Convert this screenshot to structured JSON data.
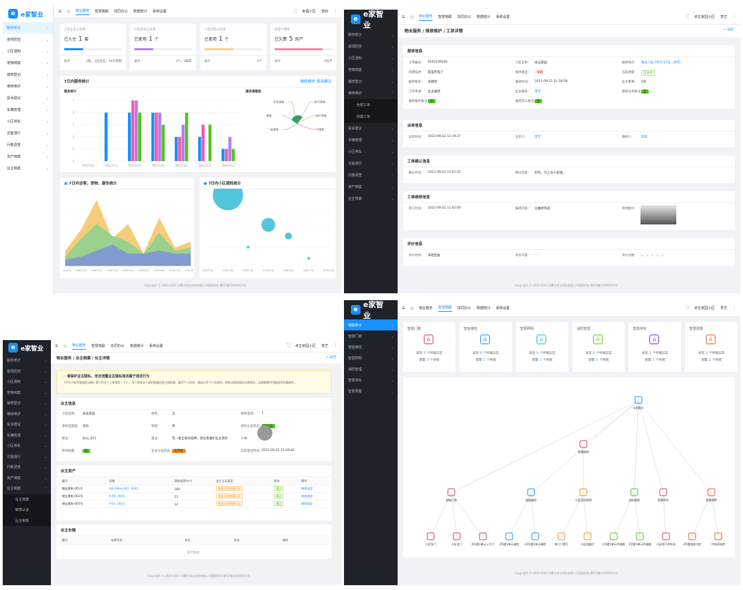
{
  "brand": {
    "name": "e家智业",
    "mark": "e"
  },
  "p1": {
    "topbar": {
      "tabs": [
        "物业服务",
        "智慧物联",
        "协同办公",
        "数据统计",
        "系统设置"
      ],
      "active": 0,
      "community": "幸福小区",
      "user": "李四"
    },
    "sidebar": [
      {
        "label": "服务统计",
        "active": true
      },
      {
        "label": "疫情防控"
      },
      {
        "label": "小区通知"
      },
      {
        "label": "宠物档案"
      },
      {
        "label": "装修登记"
      },
      {
        "label": "维修维护"
      },
      {
        "label": "投诉建议"
      },
      {
        "label": "车辆管理"
      },
      {
        "label": "小区停车"
      },
      {
        "label": "访客通行"
      },
      {
        "label": "问卷调查"
      },
      {
        "label": "资产档案"
      },
      {
        "label": "业主档案"
      }
    ],
    "stats": [
      {
        "title": "小区业主入住率",
        "label": "已入住",
        "value": "1",
        "unit": "套",
        "total_label": "总计",
        "total": "3套，1位业主，24只宠物",
        "bar": 0.33,
        "color": "#1890ff"
      },
      {
        "title": "小区车位占有率",
        "label": "已使用",
        "value": "1",
        "unit": "个",
        "total_label": "总计",
        "total": "3个，3辆车",
        "bar": 0.33,
        "color": "#b37feb"
      },
      {
        "title": "小区货柜占有率",
        "label": "已使用",
        "value": "1",
        "unit": "个",
        "total_label": "总计",
        "total": "2个",
        "bar": 0.5,
        "color": "#fbd28b"
      },
      {
        "title": "房屋欠费率",
        "label": "已欠费",
        "value": "5",
        "unit": "房产",
        "total_label": "总计",
        "total": "6房产",
        "bar": 0.83,
        "color": "#ff85a2"
      }
    ],
    "service": {
      "title": "7日内服务统计",
      "links": [
        "维修维护",
        "投诉建议"
      ],
      "left_title": "服务统计",
      "right_title": "服务满意度",
      "satisfaction": [
        "非常满意",
        "满意",
        "一般满意",
        "很不满意",
        "很不满意",
        "不满意"
      ]
    },
    "area": {
      "title": "7日内访客、宠物、康车统计"
    },
    "bubble": {
      "title": "7日内小区通知统计"
    },
    "footer": "Copyright © 2020-2021 内蒙古卓五科技有限公司版权所有  蒙ICP备20000001号"
  },
  "chart_data": [
    {
      "type": "bar",
      "categories": [
        "09月10日",
        "09月11日",
        "09月12日",
        "09月13日",
        "09月14日",
        "09月15日",
        "09月16日"
      ],
      "yticks": [
        0,
        1,
        2,
        3,
        4,
        5
      ],
      "series": [
        {
          "color": "#1890ff",
          "values": [
            0,
            4,
            4,
            4,
            2,
            2,
            1
          ]
        },
        {
          "color": "#f759ab",
          "values": [
            0,
            0,
            5,
            4,
            2,
            3,
            1
          ]
        },
        {
          "color": "#b37feb",
          "values": [
            0,
            0,
            5,
            4,
            3,
            0,
            2
          ]
        },
        {
          "color": "#52c41a",
          "values": [
            0,
            0,
            4,
            3,
            4,
            3,
            1
          ]
        }
      ],
      "ylim": [
        0,
        5
      ]
    },
    {
      "type": "area",
      "categories": [
        "09月10日",
        "09月11日",
        "09月12日",
        "09月13日",
        "09月14日",
        "09月15日",
        "09月16日",
        "09月17日",
        "09月18日"
      ],
      "series": [
        {
          "color": "#f5c76a",
          "values": [
            5,
            12,
            22,
            9,
            14,
            4,
            16,
            6,
            8
          ]
        },
        {
          "color": "#8fd18f",
          "values": [
            3,
            9,
            14,
            10,
            8,
            4,
            11,
            5,
            6
          ]
        },
        {
          "color": "#8095d6",
          "values": [
            2,
            3,
            5,
            7,
            4,
            4,
            5,
            4,
            4
          ]
        }
      ],
      "ylim": [
        0,
        25
      ]
    },
    {
      "type": "scatter",
      "categories": [
        "09月12日",
        "09月13日",
        "09月14日",
        "09月15日",
        "09月16日",
        "09月17日",
        "09月18日"
      ],
      "points": [
        {
          "x": 1,
          "y": 0.95,
          "r": 22
        },
        {
          "x": 3,
          "y": 0.55,
          "r": 10
        },
        {
          "x": 4,
          "y": 0.4,
          "r": 5
        },
        {
          "x": 2,
          "y": 0.25,
          "r": 2
        },
        {
          "x": 5,
          "y": 0.1,
          "r": 2
        }
      ]
    }
  ],
  "p2": {
    "topbar": {
      "tabs": [
        "物业服务",
        "智慧物联",
        "协同办公",
        "数据统计",
        "系统设置"
      ],
      "community": "卓五家园小区",
      "user": "李艺"
    },
    "breadcrumb": "物业服务 / 维修维护 / 工单详情",
    "back": "< 返回",
    "sidebar": [
      {
        "label": "服务统计"
      },
      {
        "label": "疫情防控"
      },
      {
        "label": "小区通知"
      },
      {
        "label": "宠物档案"
      },
      {
        "label": "装修登记"
      },
      {
        "label": "维修维护",
        "open": true
      },
      {
        "label": "全部工单",
        "sub": true
      },
      {
        "label": "创建工单",
        "sub": true
      },
      {
        "label": "投诉建议"
      },
      {
        "label": "车辆管理"
      },
      {
        "label": "小区停车"
      },
      {
        "label": "访客通行"
      },
      {
        "label": "问卷调查"
      },
      {
        "label": "资产档案"
      },
      {
        "label": "业主档案"
      }
    ],
    "s1": {
      "title": "报修信息",
      "rows": [
        [
          "工单编号：",
          "P202109200",
          "小区名称：",
          "卓五家园",
          "报修地点：",
          "物业 1栋/7单元/07号（住宅）"
        ],
        [
          "问题描述：",
          "家里停电了",
          "报修类型：",
          "电路",
          "当前进度：",
          "已派单"
        ],
        [
          "报修联系：",
          "宋建阳",
          "报修时间：",
          "2021-09-22 11:18:58",
          "业主重要：",
          "0次"
        ],
        [
          "工单来源：",
          "业主报修",
          "业主报名：",
          "李艺",
          "报修派单备注：",
          "是"
        ],
        [
          "报修报单备注：",
          "是",
          "报修完工备注：",
          "是",
          "",
          ""
        ]
      ]
    },
    "s2": {
      "title": "派单信息",
      "rows": [
        [
          "派单时间：",
          "2021-09-22 11:19:27",
          "派单人：",
          "李艺",
          "维修人：",
          "李四"
        ]
      ]
    },
    "s3": {
      "title": "工单确认信息",
      "rows": [
        [
          "确认时间：",
          "2021-09-22 11:41:22",
          "确认回复：",
          "好的，马上派人处理。"
        ]
      ]
    },
    "s4": {
      "title": "工单维修信息",
      "rows": [
        [
          "完工时间：",
          "2021-09-22 11:42:00",
          "报修内容：",
          "已维修完成",
          "现场图片："
        ]
      ]
    },
    "s5": {
      "title": "评价信息",
      "rows": [
        [
          "评价时间：",
          "未给回复",
          "评价内容：",
          "--",
          "评价分数："
        ]
      ]
    },
    "footer": "Copyright © 2020-2021 内蒙古卓五科技有限公司版权所有  蒙ICP备20000001号"
  },
  "p3": {
    "topbar": {
      "tabs": [
        "物业服务",
        "智慧物联",
        "协同办公",
        "数据统计",
        "系统设置"
      ],
      "community": "卓五家园小区",
      "user": "李艺"
    },
    "breadcrumb": "物业服务 / 业主档案 / 业主详情",
    "back": "< 返回",
    "sidebar": [
      {
        "label": "服务统计"
      },
      {
        "label": "疫情防控"
      },
      {
        "label": "小区通知"
      },
      {
        "label": "宠物档案"
      },
      {
        "label": "装修登记"
      },
      {
        "label": "维修维护"
      },
      {
        "label": "投诉建议"
      },
      {
        "label": "车辆管理"
      },
      {
        "label": "小区停车"
      },
      {
        "label": "访客通行"
      },
      {
        "label": "问卷调查"
      },
      {
        "label": "资产档案"
      },
      {
        "label": "业主档案",
        "open": true
      },
      {
        "label": "业主档案",
        "sub": true
      },
      {
        "label": "审核认证",
        "sub": true
      },
      {
        "label": "业主审核",
        "sub": true
      }
    ],
    "warning": {
      "title": "请保护业主隐私，非法泄露业主隐私违法属于违法行为",
      "text": "《中华人民共和国民法典》第二百五十三条规定：个人、法人和非法人组织根据信息主体同意、填写个人信息，擅自公开个人信息的，将依法承担相关法律责任，且依据情节可能追究刑事责任。"
    },
    "owner": {
      "title": "业主信息",
      "rows": [
        [
          "小区名称：",
          "卓五家园",
          "姓名：",
          "王",
          "联系电话：",
          "1"
        ],
        [
          "身份证类型：",
          "身份",
          "性别：",
          "男",
          "身份认证状态：",
          "已认证"
        ],
        [
          "职业：",
          "办公_877",
          "备注：",
          "无一套全款房抵押，请注意维护业主资料",
          "头像：",
          ""
        ],
        [
          "影响购置：",
          "是",
          "业主认证状态：",
          "未审核",
          "信息登记时间：",
          "2021-09-22 11:20:42"
        ]
      ]
    },
    "assets": {
      "title": "业主资产",
      "headers": [
        "编号",
        "详细",
        "建筑面积(m²)",
        "业主认证类型",
        "状态",
        "操作"
      ],
      "rows": [
        [
          "物业楼栋-001号",
          "1栋/3单元/303（住宅）",
          "180",
          "物业公司房屋认证",
          "通过",
          "移除绑定"
        ],
        [
          "物业楼栋-002号",
          "A-08（车位）",
          "12",
          "物业公司房屋认证",
          "通过",
          "移除绑定"
        ],
        [
          "物业楼栋-003号",
          "F-03（车位）",
          "14",
          "物业公司房屋认证",
          "通过",
          "移除绑定"
        ]
      ]
    },
    "vehicles": {
      "title": "业主车辆",
      "headers": [
        "编号",
        "车牌号码",
        "车位",
        "状态",
        "操作"
      ],
      "empty": "暂无数据"
    },
    "footer": "Copyright © 2020-2021 内蒙古卓五科技有限公司版权所有  蒙ICP备20000001号"
  },
  "p4": {
    "topbar": {
      "tabs": [
        "物业服务",
        "智慧物联",
        "协同办公",
        "数据统计",
        "系统设置"
      ],
      "active": 1,
      "community": "卓五家园小区",
      "user": "李艺"
    },
    "sidebar": [
      {
        "label": "物联统计",
        "active": true
      },
      {
        "label": "智能门锁"
      },
      {
        "label": "智能梯控"
      },
      {
        "label": "智慧照明"
      },
      {
        "label": "消防管理"
      },
      {
        "label": "智慧停车"
      },
      {
        "label": "智慧预警"
      }
    ],
    "devices": [
      {
        "name": "智能门禁",
        "found": "0",
        "found_label": "个终端异常",
        "deploy": "3",
        "deploy_label": "个终端",
        "color": "#d4386c"
      },
      {
        "name": "智能梯控",
        "found": "0",
        "found_label": "个终端异常",
        "deploy": "2",
        "deploy_label": "个终端",
        "color": "#1890ff"
      },
      {
        "name": "智慧照明",
        "found": "0",
        "found_label": "个终端异常",
        "deploy": "1",
        "deploy_label": "个终端",
        "color": "#13c2c2"
      },
      {
        "name": "消防管理",
        "found": "0",
        "found_label": "个终端异常",
        "deploy": "2",
        "deploy_label": "个终端",
        "color": "#52c41a"
      },
      {
        "name": "智慧停车",
        "found": "1",
        "found_label": "个终端异常",
        "deploy": "1",
        "deploy_label": "个终端",
        "color": "#722ed1"
      },
      {
        "name": "智慧预警",
        "found": "0",
        "found_label": "个终端异常",
        "deploy": "2",
        "deploy_label": "个终端",
        "color": "#fa541c"
      }
    ],
    "found_prefix": "发现",
    "deploy_prefix": "部署",
    "tree": {
      "root": "e家智业",
      "mid": [
        "智慧照明"
      ],
      "level2": [
        "智能门禁",
        "智能梯控",
        "小区室内照明",
        "消防管理",
        "智慧停车",
        "智慧预警"
      ],
      "leaves": [
        "小区东门",
        "小区北门",
        "6号楼1单元入户门",
        "2号楼1单元梯控",
        "10号楼1单元梯控",
        "南门门禁灯",
        "小区园路灯",
        "1号楼1单元中烟感",
        "2号楼1单元中烟感",
        "小区地下停车场",
        "3号楼地面中控",
        "中央机电房"
      ]
    },
    "footer": "Copyright © 2020-2021 内蒙古卓五科技有限公司版权所有  蒙ICP备20000001号"
  }
}
